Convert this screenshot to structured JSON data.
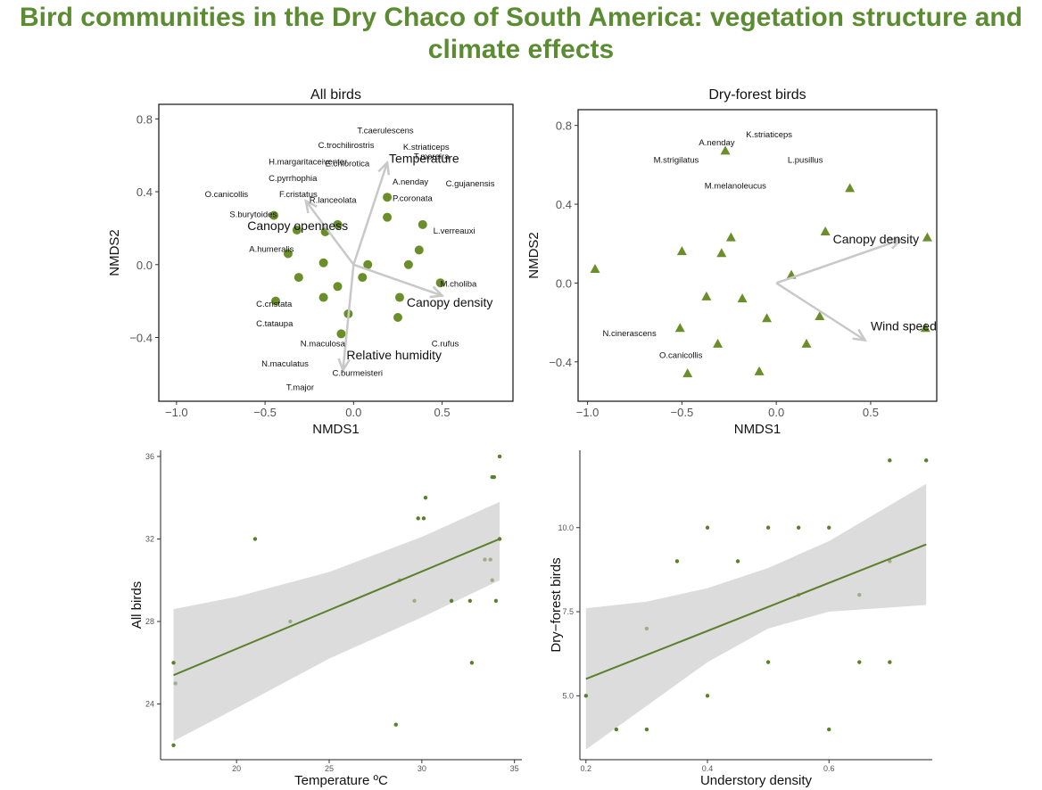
{
  "title": "Bird communities in the Dry Chaco of South America: vegetation structure and climate effects",
  "colors": {
    "title": "#5b8c32",
    "point": "#6a8e2a",
    "arrow": "#c8c8c8",
    "fit_line": "#5b7f2a",
    "band": "#dcdcdc",
    "faded_point": "#9fae86"
  },
  "chart_data": [
    {
      "type": "scatter",
      "title": "All birds",
      "xlabel": "NMDS1",
      "ylabel": "NMDS2",
      "xlim": [
        -1.1,
        0.9
      ],
      "ylim": [
        -0.75,
        0.88
      ],
      "xticks": [
        "−1.0",
        "−0.5",
        "0.0",
        "0.5"
      ],
      "xtick_values": [
        -1.0,
        -0.5,
        0.0,
        0.5
      ],
      "yticks": [
        "−0.4",
        "0.0",
        "0.4",
        "0.8"
      ],
      "ytick_values": [
        -0.4,
        0.0,
        0.4,
        0.8
      ],
      "marker": "circle",
      "points": [
        {
          "x": -0.45,
          "y": 0.27
        },
        {
          "x": -0.32,
          "y": 0.19
        },
        {
          "x": -0.16,
          "y": 0.18
        },
        {
          "x": -0.09,
          "y": 0.22
        },
        {
          "x": -0.37,
          "y": 0.06
        },
        {
          "x": -0.17,
          "y": 0.01
        },
        {
          "x": -0.31,
          "y": -0.07
        },
        {
          "x": -0.09,
          "y": -0.12
        },
        {
          "x": -0.17,
          "y": -0.18
        },
        {
          "x": -0.44,
          "y": -0.2
        },
        {
          "x": 0.08,
          "y": 0.0
        },
        {
          "x": 0.05,
          "y": -0.07
        },
        {
          "x": -0.03,
          "y": -0.27
        },
        {
          "x": -0.07,
          "y": -0.38
        },
        {
          "x": 0.19,
          "y": 0.37
        },
        {
          "x": 0.19,
          "y": 0.26
        },
        {
          "x": 0.39,
          "y": 0.22
        },
        {
          "x": 0.37,
          "y": 0.08
        },
        {
          "x": 0.31,
          "y": 0.0
        },
        {
          "x": 0.49,
          "y": -0.1
        },
        {
          "x": 0.26,
          "y": -0.18
        },
        {
          "x": 0.25,
          "y": -0.29
        }
      ],
      "species": [
        {
          "label": "C.trochilirostris",
          "x": -0.2,
          "y": 0.64
        },
        {
          "label": "T.caerulescens",
          "x": 0.02,
          "y": 0.72
        },
        {
          "label": "H.margaritaceiventer",
          "x": -0.48,
          "y": 0.55
        },
        {
          "label": "E.chlorotica",
          "x": -0.16,
          "y": 0.54
        },
        {
          "label": "K.striaticeps",
          "x": 0.28,
          "y": 0.63
        },
        {
          "label": "T.moreira",
          "x": 0.34,
          "y": 0.58
        },
        {
          "label": "C.pyrrhophia",
          "x": -0.48,
          "y": 0.46
        },
        {
          "label": "A.nenday",
          "x": 0.22,
          "y": 0.44
        },
        {
          "label": "C.gujanensis",
          "x": 0.52,
          "y": 0.43
        },
        {
          "label": "O.canicollis",
          "x": -0.84,
          "y": 0.37
        },
        {
          "label": "F.cristatus",
          "x": -0.42,
          "y": 0.37
        },
        {
          "label": "R.lanceolata",
          "x": -0.25,
          "y": 0.34
        },
        {
          "label": "P.coronata",
          "x": 0.22,
          "y": 0.35
        },
        {
          "label": "S.burytoides",
          "x": -0.7,
          "y": 0.26
        },
        {
          "label": "L.verreauxi",
          "x": 0.45,
          "y": 0.17
        },
        {
          "label": "A.humeralis",
          "x": -0.59,
          "y": 0.07
        },
        {
          "label": "M.choliba",
          "x": 0.49,
          "y": -0.12
        },
        {
          "label": "C.cristata",
          "x": -0.55,
          "y": -0.23
        },
        {
          "label": "C.tataupa",
          "x": -0.55,
          "y": -0.34
        },
        {
          "label": "N.maculosa",
          "x": -0.3,
          "y": -0.45
        },
        {
          "label": "C.rufus",
          "x": 0.44,
          "y": -0.45
        },
        {
          "label": "N.maculatus",
          "x": -0.52,
          "y": -0.56
        },
        {
          "label": "C.burmeisteri",
          "x": -0.12,
          "y": -0.61
        },
        {
          "label": "T.major",
          "x": -0.38,
          "y": -0.69
        }
      ],
      "vectors": [
        {
          "label": "Temperature",
          "x": 0.19,
          "y": 0.56,
          "lx": 0.2,
          "ly": 0.56
        },
        {
          "label": "Canopy openness",
          "x": -0.27,
          "y": 0.35,
          "lx": -0.6,
          "ly": 0.19
        },
        {
          "label": "Canopy density",
          "x": 0.5,
          "y": -0.17,
          "lx": 0.3,
          "ly": -0.23
        },
        {
          "label": "Relative humidity",
          "x": -0.06,
          "y": -0.58,
          "lx": -0.04,
          "ly": -0.52
        }
      ]
    },
    {
      "type": "scatter",
      "title": "Dry-forest birds",
      "xlabel": "NMDS1",
      "ylabel": "NMDS2",
      "xlim": [
        -1.05,
        0.85
      ],
      "ylim": [
        -0.6,
        0.88
      ],
      "xticks": [
        "−1.0",
        "−0.5",
        "0.0",
        "0.5"
      ],
      "xtick_values": [
        -1.0,
        -0.5,
        0.0,
        0.5
      ],
      "yticks": [
        "−0.4",
        "0.0",
        "0.4",
        "0.8"
      ],
      "ytick_values": [
        -0.4,
        0.0,
        0.4,
        0.8
      ],
      "marker": "triangle",
      "points": [
        {
          "x": -0.27,
          "y": 0.67
        },
        {
          "x": 0.39,
          "y": 0.48
        },
        {
          "x": 0.26,
          "y": 0.26
        },
        {
          "x": 0.8,
          "y": 0.23
        },
        {
          "x": -0.24,
          "y": 0.23
        },
        {
          "x": -0.5,
          "y": 0.16
        },
        {
          "x": -0.29,
          "y": 0.15
        },
        {
          "x": -0.96,
          "y": 0.07
        },
        {
          "x": 0.08,
          "y": 0.04
        },
        {
          "x": -0.37,
          "y": -0.07
        },
        {
          "x": -0.18,
          "y": -0.08
        },
        {
          "x": -0.05,
          "y": -0.18
        },
        {
          "x": 0.23,
          "y": -0.17
        },
        {
          "x": -0.51,
          "y": -0.23
        },
        {
          "x": 0.79,
          "y": -0.23
        },
        {
          "x": -0.31,
          "y": -0.31
        },
        {
          "x": 0.16,
          "y": -0.31
        },
        {
          "x": -0.09,
          "y": -0.45
        },
        {
          "x": -0.47,
          "y": -0.46
        }
      ],
      "species": [
        {
          "label": "K.striaticeps",
          "x": -0.16,
          "y": 0.74
        },
        {
          "label": "A.nenday",
          "x": -0.41,
          "y": 0.7
        },
        {
          "label": "M.strigilatus",
          "x": -0.65,
          "y": 0.61
        },
        {
          "label": "L.pusillus",
          "x": 0.06,
          "y": 0.61
        },
        {
          "label": "M.melanoleucus",
          "x": -0.38,
          "y": 0.48
        },
        {
          "label": "N.cinerascens",
          "x": -0.92,
          "y": -0.27
        },
        {
          "label": "O.canicollis",
          "x": -0.62,
          "y": -0.38
        }
      ],
      "vectors": [
        {
          "label": "Canopy density",
          "x": 0.66,
          "y": 0.22,
          "lx": 0.3,
          "ly": 0.2
        },
        {
          "label": "Wind speed",
          "x": 0.47,
          "y": -0.29,
          "lx": 0.5,
          "ly": -0.24
        }
      ]
    },
    {
      "type": "scatter",
      "title": "",
      "xlabel": "Temperature ºC",
      "ylabel": "All birds",
      "xlim": [
        15.9,
        35.4
      ],
      "ylim": [
        21.3,
        36.3
      ],
      "xticks": [
        "20",
        "25",
        "30",
        "35"
      ],
      "xtick_values": [
        20,
        25,
        30,
        35
      ],
      "yticks": [
        "24",
        "28",
        "32",
        "36"
      ],
      "ytick_values": [
        24,
        28,
        32,
        36
      ],
      "fit": {
        "x": [
          16.6,
          34.2
        ],
        "y": [
          25.4,
          32.0
        ]
      },
      "band": {
        "x": [
          16.6,
          20,
          25,
          30,
          34.2
        ],
        "upper": [
          28.6,
          29.2,
          30.4,
          32.1,
          33.8
        ],
        "lower": [
          22.2,
          23.8,
          26.2,
          28.2,
          30.0
        ]
      },
      "points": [
        {
          "x": 16.6,
          "y": 26
        },
        {
          "x": 16.6,
          "y": 22
        },
        {
          "x": 21,
          "y": 32
        },
        {
          "x": 28.6,
          "y": 23
        },
        {
          "x": 29.8,
          "y": 33
        },
        {
          "x": 30.1,
          "y": 33
        },
        {
          "x": 30.2,
          "y": 34
        },
        {
          "x": 31.6,
          "y": 29
        },
        {
          "x": 32.6,
          "y": 29
        },
        {
          "x": 32.7,
          "y": 26
        },
        {
          "x": 33.8,
          "y": 35
        },
        {
          "x": 33.9,
          "y": 35
        },
        {
          "x": 34.0,
          "y": 29
        },
        {
          "x": 34.2,
          "y": 36
        },
        {
          "x": 34.2,
          "y": 32
        }
      ],
      "faded_points": [
        {
          "x": 16.7,
          "y": 25
        },
        {
          "x": 22.9,
          "y": 28
        },
        {
          "x": 28.8,
          "y": 30
        },
        {
          "x": 29.6,
          "y": 29
        },
        {
          "x": 33.4,
          "y": 31
        },
        {
          "x": 33.7,
          "y": 31
        },
        {
          "x": 33.8,
          "y": 30
        }
      ]
    },
    {
      "type": "scatter",
      "title": "",
      "xlabel": "Understory density",
      "ylabel": "Dry−forest birds",
      "xlim": [
        0.19,
        0.77
      ],
      "ylim": [
        3.1,
        12.3
      ],
      "xticks": [
        "0.2",
        "0.4",
        "0.6"
      ],
      "xtick_values": [
        0.2,
        0.4,
        0.6
      ],
      "yticks": [
        "5.0",
        "7.5",
        "10.0"
      ],
      "ytick_values": [
        5.0,
        7.5,
        10.0
      ],
      "fit": {
        "x": [
          0.2,
          0.76
        ],
        "y": [
          5.5,
          9.5
        ]
      },
      "band": {
        "x": [
          0.2,
          0.3,
          0.4,
          0.5,
          0.6,
          0.76
        ],
        "upper": [
          7.6,
          7.8,
          8.2,
          8.8,
          9.6,
          11.3
        ],
        "lower": [
          3.4,
          4.7,
          6.0,
          7.0,
          7.5,
          7.7
        ]
      },
      "points": [
        {
          "x": 0.2,
          "y": 5
        },
        {
          "x": 0.25,
          "y": 4
        },
        {
          "x": 0.3,
          "y": 4
        },
        {
          "x": 0.35,
          "y": 9
        },
        {
          "x": 0.4,
          "y": 10
        },
        {
          "x": 0.4,
          "y": 5
        },
        {
          "x": 0.45,
          "y": 9
        },
        {
          "x": 0.5,
          "y": 10
        },
        {
          "x": 0.5,
          "y": 6
        },
        {
          "x": 0.55,
          "y": 10
        },
        {
          "x": 0.6,
          "y": 10
        },
        {
          "x": 0.6,
          "y": 4
        },
        {
          "x": 0.65,
          "y": 6
        },
        {
          "x": 0.7,
          "y": 12
        },
        {
          "x": 0.7,
          "y": 6
        },
        {
          "x": 0.76,
          "y": 12
        }
      ],
      "faded_points": [
        {
          "x": 0.3,
          "y": 7
        },
        {
          "x": 0.55,
          "y": 8
        },
        {
          "x": 0.65,
          "y": 8
        },
        {
          "x": 0.7,
          "y": 9
        }
      ]
    }
  ]
}
